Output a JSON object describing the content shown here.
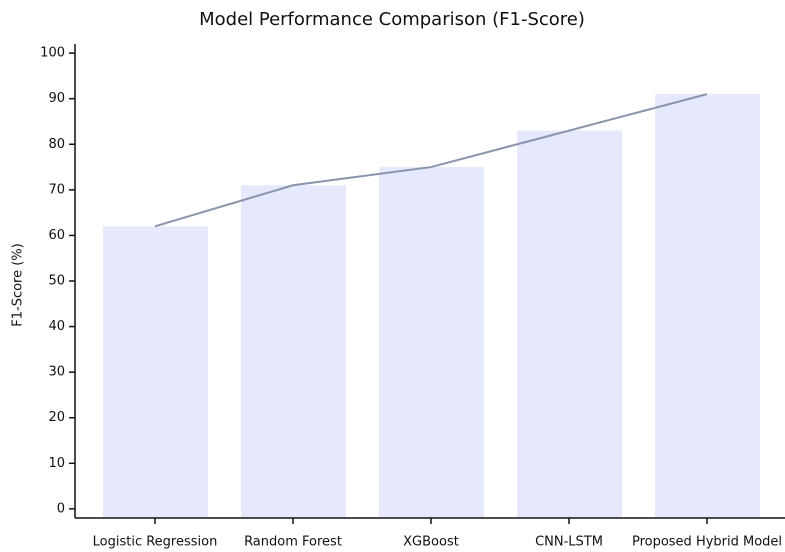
{
  "chart_data": {
    "type": "bar",
    "title": "Model Performance Comparison (F1-Score)",
    "y_label": "F1-Score (%)",
    "categories": [
      "Logistic Regression",
      "Random Forest",
      "XGBoost",
      "CNN-LSTM",
      "Proposed Hybrid Model"
    ],
    "series": [
      {
        "type": "bar",
        "color": "#e6e8fb",
        "values": [
          62,
          71,
          75,
          83,
          91
        ]
      },
      {
        "type": "line",
        "color": "#8a94ad",
        "values": [
          62,
          71,
          75,
          83,
          91
        ]
      }
    ],
    "ylim": [
      -2,
      102
    ],
    "yticks": [
      0,
      10,
      20,
      30,
      40,
      50,
      60,
      70,
      80,
      90,
      100
    ]
  }
}
